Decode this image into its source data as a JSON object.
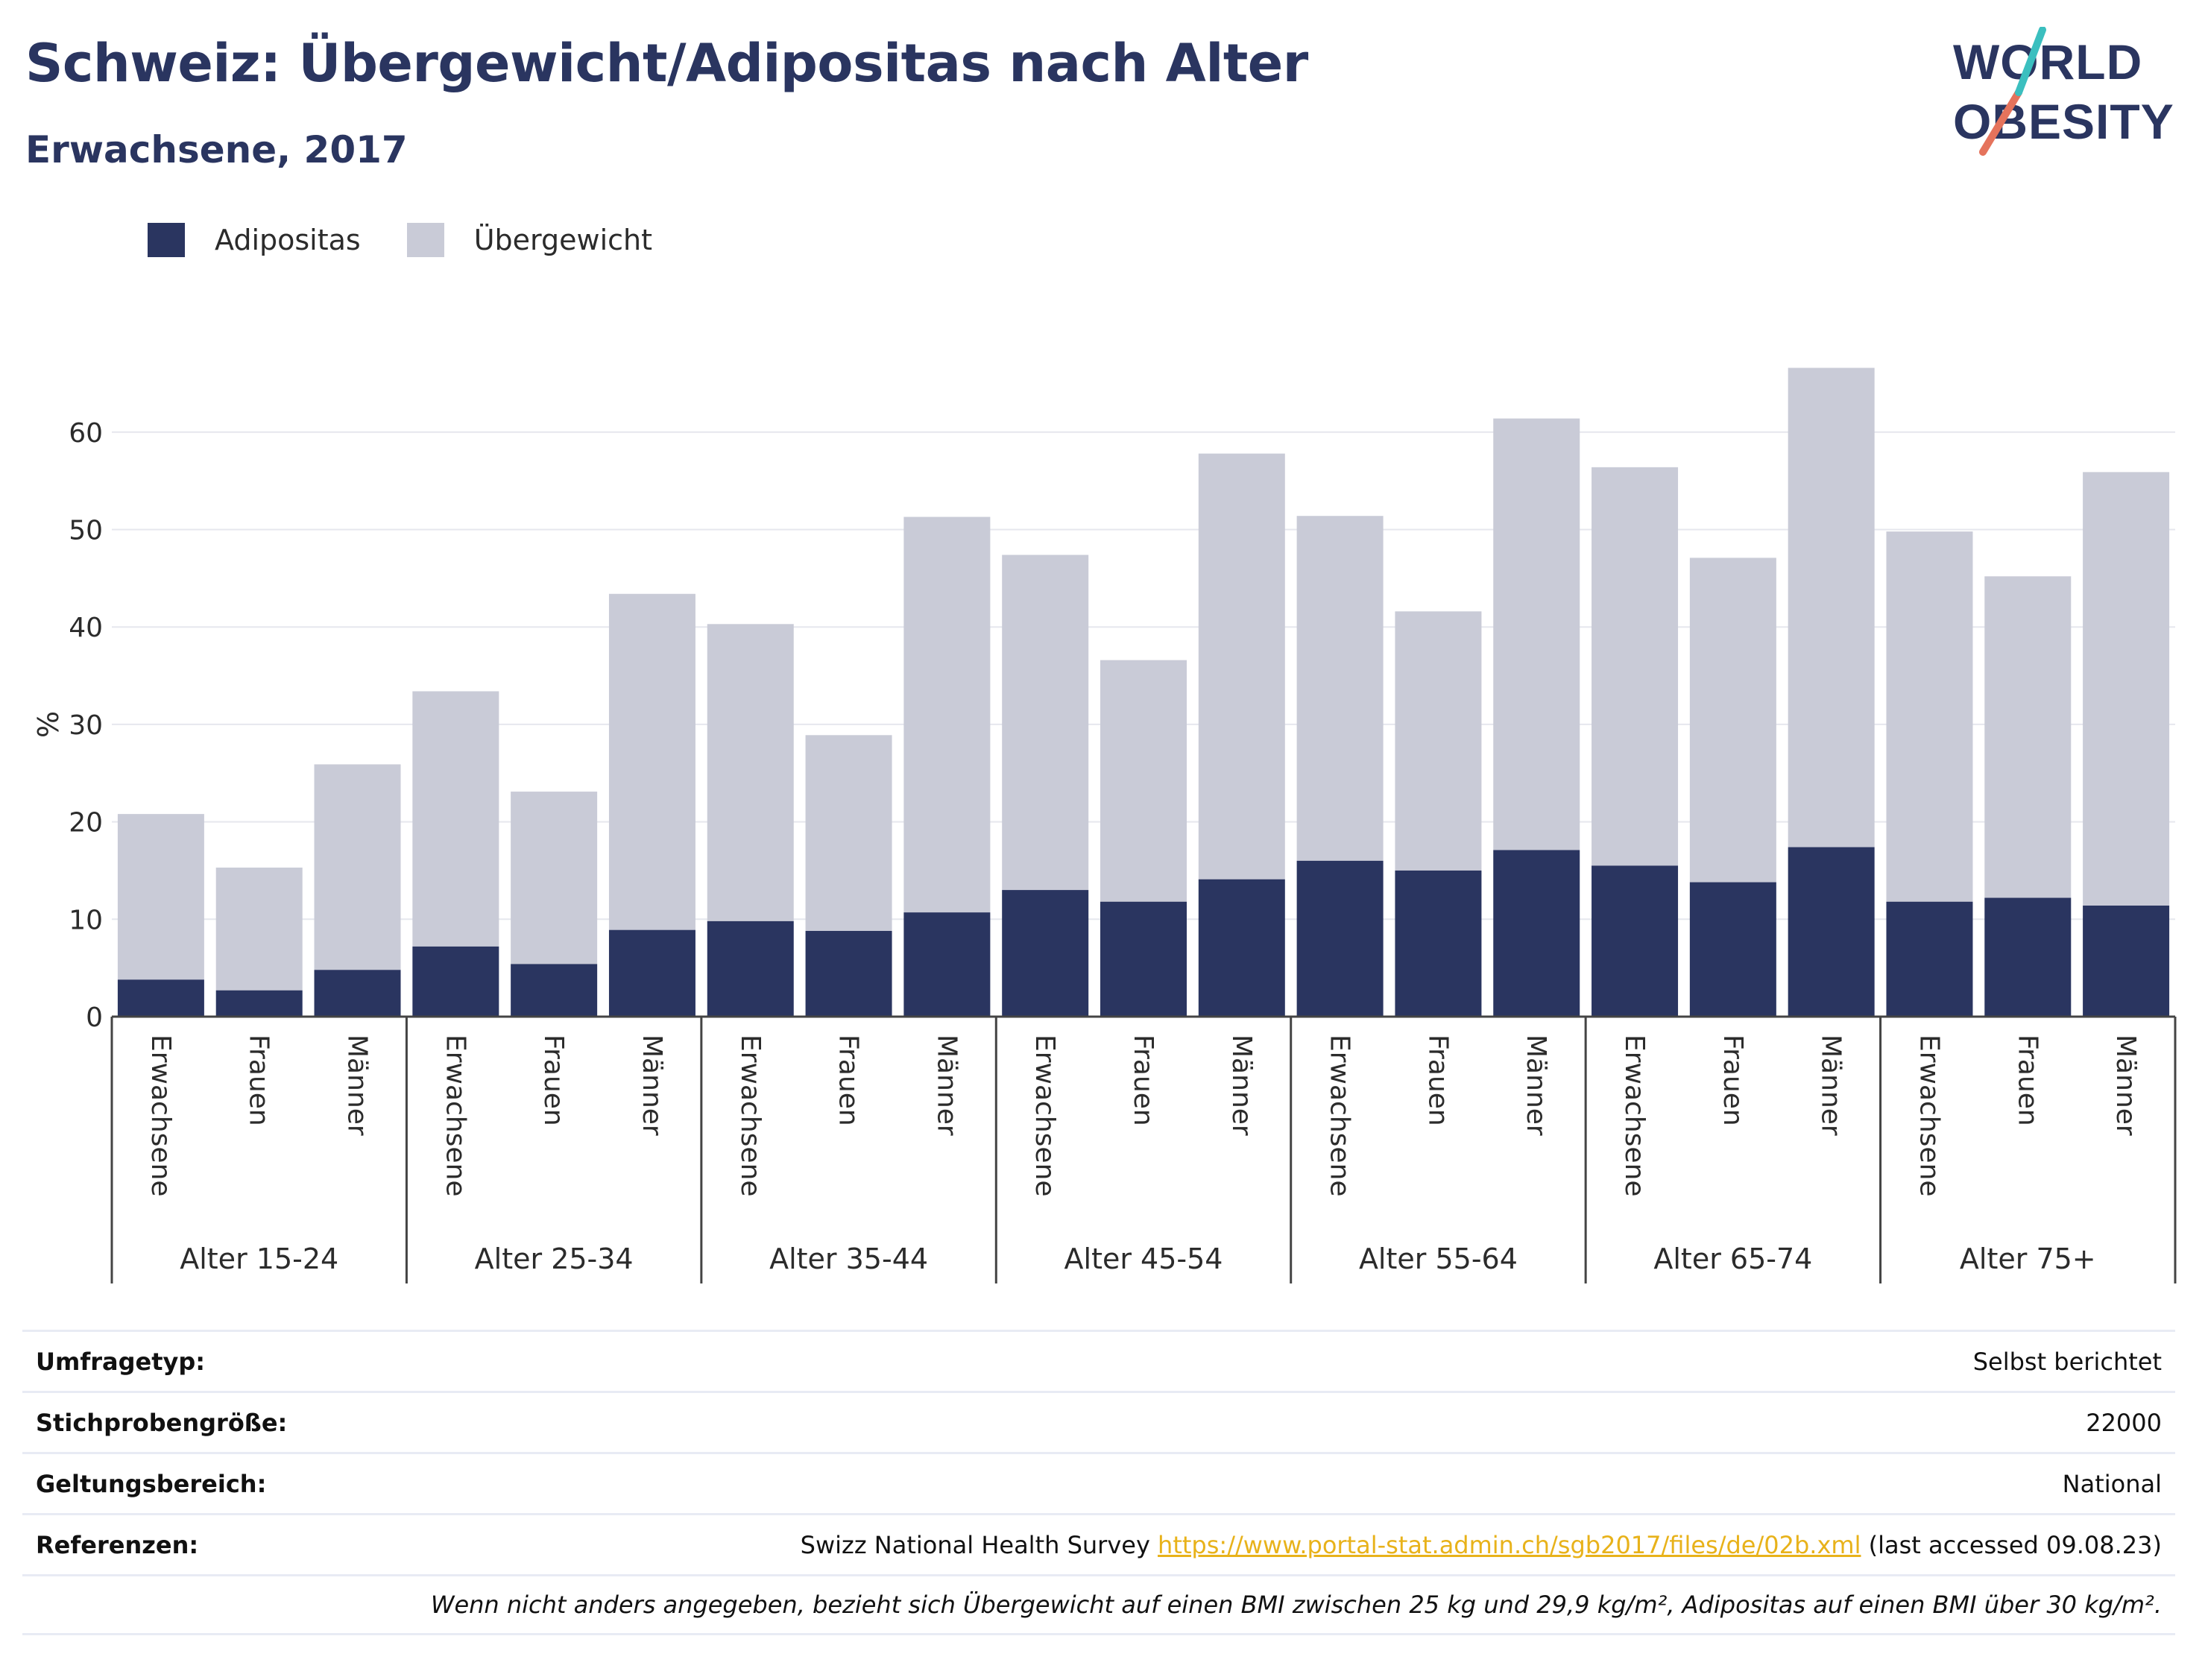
{
  "header": {
    "title": "Schweiz: Übergewicht/Adipositas nach Alter",
    "subtitle": "Erwachsene, 2017"
  },
  "logo": {
    "line1": "WORLD",
    "line2": "OBESITY"
  },
  "legend": {
    "items": [
      {
        "label": "Adipositas",
        "color": "#2a3560"
      },
      {
        "label": "Übergewicht",
        "color": "#c9cbd7"
      }
    ]
  },
  "chart_data": {
    "type": "bar",
    "stacked": true,
    "ylabel": "%",
    "ylim": [
      0,
      70
    ],
    "yticks": [
      0,
      10,
      20,
      30,
      40,
      50,
      60
    ],
    "grid": true,
    "legend_position": "top-left",
    "groups": [
      "Alter 15-24",
      "Alter 25-34",
      "Alter 35-44",
      "Alter 45-54",
      "Alter 55-64",
      "Alter 65-74",
      "Alter 75+"
    ],
    "subcategories": [
      "Erwachsene",
      "Frauen",
      "Männer"
    ],
    "series": [
      {
        "name": "Adipositas",
        "color": "#2a3560",
        "values": [
          3.8,
          2.7,
          4.8,
          7.2,
          5.4,
          8.9,
          9.8,
          8.8,
          10.7,
          13.0,
          11.8,
          14.1,
          16.0,
          15.0,
          17.1,
          15.5,
          13.8,
          17.4,
          11.8,
          12.2,
          11.4
        ]
      },
      {
        "name": "Übergewicht",
        "color": "#c9cbd7",
        "values": [
          17.0,
          12.6,
          21.1,
          26.2,
          17.7,
          34.5,
          30.5,
          20.1,
          40.6,
          34.4,
          24.8,
          43.7,
          35.4,
          26.6,
          44.3,
          40.9,
          33.3,
          49.2,
          38.0,
          33.0,
          44.5
        ]
      }
    ]
  },
  "footer": {
    "survey_type": {
      "label": "Umfragetyp:",
      "value": "Selbst berichtet"
    },
    "sample_size": {
      "label": "Stichprobengröße:",
      "value": "22000"
    },
    "scope": {
      "label": "Geltungsbereich:",
      "value": "National"
    },
    "references": {
      "label": "Referenzen:",
      "prefix": "Swizz National Health Survey",
      "link": "https://www.portal-stat.admin.ch/sgb2017/files/de/02b.xml",
      "suffix": "(last accessed 09.08.23)"
    },
    "note": "Wenn nicht anders angegeben, bezieht sich Übergewicht auf einen BMI zwischen 25 kg und 29,9 kg/m², Adipositas auf einen BMI über 30 kg/m²."
  }
}
